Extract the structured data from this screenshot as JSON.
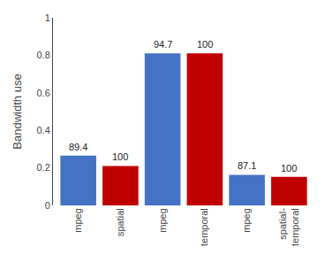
{
  "chart_data": {
    "type": "bar",
    "categories": [
      "mpeg",
      "spatial",
      "mpeg",
      "temporal",
      "mpeg",
      "spatial-\ntemporal"
    ],
    "values": [
      0.265,
      0.21,
      0.81,
      0.81,
      0.163,
      0.152
    ],
    "colors": [
      "#4472C4",
      "#C00000",
      "#4472C4",
      "#C00000",
      "#4472C4",
      "#C00000"
    ],
    "annotations": [
      "89.4",
      "100",
      "94.7",
      "100",
      "87.1",
      "100"
    ],
    "ylabel": "Bandwidth use",
    "ylim": [
      0,
      1
    ],
    "yticks": [
      0,
      0.2,
      0.4,
      0.6,
      0.8,
      1
    ],
    "grid": false
  }
}
